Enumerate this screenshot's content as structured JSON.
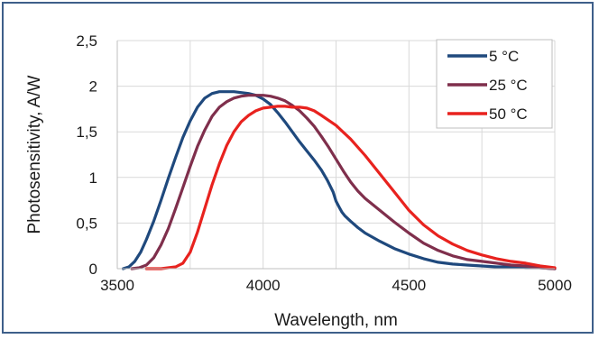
{
  "chart_data": {
    "type": "line",
    "title": "",
    "xlabel": "Wavelength, nm",
    "ylabel": "Photosensitivity, A/W",
    "xlim": [
      3500,
      5000
    ],
    "ylim": [
      0,
      2.5
    ],
    "x_ticks": [
      3500,
      4000,
      4500,
      5000
    ],
    "x_tick_labels": [
      "3500",
      "4000",
      "4500",
      "5000"
    ],
    "x_minor_gridlines": [
      3750,
      4250,
      4750
    ],
    "y_ticks": [
      0,
      0.5,
      1,
      1.5,
      2,
      2.5
    ],
    "y_tick_labels": [
      "0",
      "0,5",
      "1",
      "1,5",
      "2",
      "2,5"
    ],
    "grid": true,
    "legend_position": "top-right",
    "series": [
      {
        "name": "5 °C",
        "color": "#1f497d",
        "x": [
          3520,
          3540,
          3560,
          3580,
          3600,
          3625,
          3650,
          3675,
          3700,
          3725,
          3750,
          3775,
          3800,
          3825,
          3850,
          3875,
          3900,
          3925,
          3950,
          3975,
          4000,
          4025,
          4050,
          4075,
          4100,
          4125,
          4150,
          4175,
          4200,
          4220,
          4240,
          4250,
          4260,
          4270,
          4280,
          4300,
          4325,
          4350,
          4400,
          4450,
          4500,
          4550,
          4600,
          4650,
          4700,
          4750,
          4800,
          4850,
          4900,
          4950,
          5000
        ],
        "values": [
          0.0,
          0.02,
          0.08,
          0.18,
          0.32,
          0.52,
          0.75,
          0.99,
          1.22,
          1.44,
          1.62,
          1.77,
          1.87,
          1.92,
          1.94,
          1.94,
          1.94,
          1.93,
          1.92,
          1.9,
          1.86,
          1.8,
          1.71,
          1.61,
          1.5,
          1.39,
          1.29,
          1.19,
          1.08,
          0.97,
          0.84,
          0.74,
          0.68,
          0.62,
          0.58,
          0.52,
          0.45,
          0.39,
          0.3,
          0.22,
          0.16,
          0.11,
          0.07,
          0.05,
          0.04,
          0.03,
          0.02,
          0.02,
          0.01,
          0.01,
          0.0
        ]
      },
      {
        "name": "25 °C",
        "color": "#7f2f4c",
        "x": [
          3550,
          3575,
          3600,
          3625,
          3650,
          3675,
          3700,
          3725,
          3750,
          3775,
          3800,
          3825,
          3850,
          3875,
          3900,
          3925,
          3950,
          3975,
          4000,
          4025,
          4050,
          4075,
          4100,
          4125,
          4150,
          4175,
          4200,
          4225,
          4250,
          4275,
          4300,
          4325,
          4350,
          4400,
          4450,
          4500,
          4550,
          4600,
          4650,
          4700,
          4750,
          4800,
          4850,
          4900,
          4950,
          5000
        ],
        "values": [
          0.0,
          0.01,
          0.04,
          0.12,
          0.26,
          0.44,
          0.66,
          0.89,
          1.12,
          1.34,
          1.52,
          1.67,
          1.77,
          1.83,
          1.87,
          1.89,
          1.9,
          1.9,
          1.9,
          1.89,
          1.87,
          1.84,
          1.79,
          1.73,
          1.65,
          1.56,
          1.45,
          1.33,
          1.2,
          1.07,
          0.95,
          0.85,
          0.77,
          0.64,
          0.51,
          0.39,
          0.28,
          0.2,
          0.14,
          0.1,
          0.08,
          0.06,
          0.04,
          0.03,
          0.01,
          0.0
        ]
      },
      {
        "name": "50 °C",
        "color": "#e8221e",
        "x": [
          3600,
          3650,
          3700,
          3725,
          3750,
          3775,
          3800,
          3825,
          3850,
          3875,
          3900,
          3925,
          3950,
          3975,
          4000,
          4025,
          4050,
          4075,
          4100,
          4125,
          4150,
          4175,
          4200,
          4250,
          4300,
          4350,
          4400,
          4450,
          4500,
          4550,
          4600,
          4650,
          4700,
          4750,
          4800,
          4850,
          4900,
          4950,
          5000
        ],
        "values": [
          0.0,
          0.0,
          0.02,
          0.06,
          0.18,
          0.4,
          0.66,
          0.92,
          1.15,
          1.35,
          1.5,
          1.61,
          1.68,
          1.73,
          1.76,
          1.77,
          1.78,
          1.78,
          1.77,
          1.77,
          1.76,
          1.73,
          1.68,
          1.57,
          1.42,
          1.24,
          1.04,
          0.84,
          0.64,
          0.48,
          0.36,
          0.27,
          0.2,
          0.15,
          0.11,
          0.08,
          0.06,
          0.03,
          0.01
        ]
      }
    ]
  }
}
